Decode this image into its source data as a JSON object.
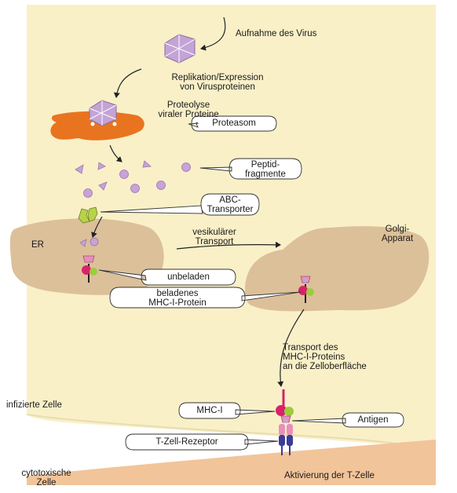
{
  "steps": {
    "uptake": "Aufnahme des Virus",
    "replication": [
      "Replikation/Expression",
      "von Virusproteinen"
    ],
    "proteolysis": [
      "Proteolyse",
      "viraler Proteine"
    ],
    "vesicular": [
      "vesikulärer",
      "Transport"
    ],
    "surface_transport": [
      "Transport des",
      "MHC-I-Proteins",
      "an die Zelloberfläche"
    ]
  },
  "callouts": {
    "proteasome": "Proteasom",
    "peptides": [
      "Peptid-",
      "fragmente"
    ],
    "abc": [
      "ABC-",
      "Transporter"
    ],
    "unloaded": "unbeladen",
    "loaded": [
      "beladenes",
      "MHC-I-Protein"
    ],
    "mhc": "MHC-I",
    "antigen": "Antigen",
    "tcr": "T-Zell-Rezeptor"
  },
  "compartments": {
    "er": "ER",
    "golgi": [
      "Golgi-",
      "Apparat"
    ]
  },
  "cells": {
    "infected": "infizierte Zelle",
    "cytotoxic": [
      "cytotoxische",
      "Zelle"
    ],
    "activation": "Aktivierung der T-Zelle"
  },
  "colors": {
    "cytoplasm": "#f9f0c8",
    "organelle": "#dcc09a",
    "virus": "#c4a4d6",
    "peptide": "#c8a2d8",
    "proteasome": "#e9741f",
    "mhc_pink": "#d8226a",
    "mhc_green": "#9ccc3c",
    "tcr_blue": "#3c3c96",
    "tcr_pink": "#e890b8"
  }
}
